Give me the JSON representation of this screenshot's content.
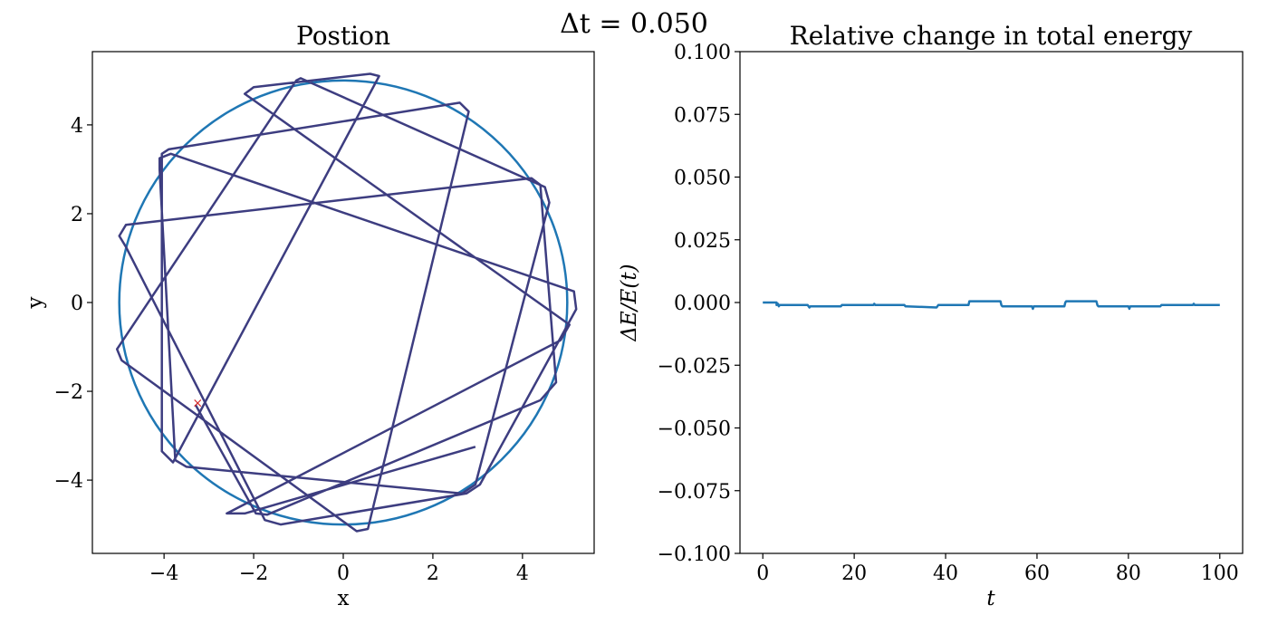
{
  "suptitle": "Δt = 0.050",
  "chart_data": [
    {
      "type": "line",
      "title": "Postion",
      "xlabel": "x",
      "ylabel": "y",
      "xlim": [
        -5.6,
        5.6
      ],
      "ylim": [
        -5.65,
        5.65
      ],
      "xticks": [
        -4,
        -2,
        0,
        2,
        4
      ],
      "xtick_labels": [
        "−4",
        "−2",
        "0",
        "2",
        "4"
      ],
      "yticks": [
        -4,
        -2,
        0,
        2,
        4
      ],
      "ytick_labels": [
        "−4",
        "−2",
        "0",
        "2",
        "4"
      ],
      "grid": false,
      "series": [
        {
          "kind": "circle",
          "center": [
            0,
            0
          ],
          "radius": 5.0,
          "color": "#1f77b4"
        },
        {
          "kind": "trajectory",
          "color": "#3d3d80",
          "points": [
            [
              -3.3,
              -2.3
            ],
            [
              -1.95,
              -4.75
            ],
            [
              -1.7,
              -4.78
            ],
            [
              4.4,
              -2.2
            ],
            [
              4.75,
              -1.8
            ],
            [
              4.4,
              2.65
            ],
            [
              4.2,
              2.8
            ],
            [
              -4.85,
              1.75
            ],
            [
              -5.0,
              1.5
            ],
            [
              -4.85,
              1.25
            ],
            [
              -1.75,
              -4.9
            ],
            [
              -1.4,
              -5.0
            ],
            [
              2.75,
              -4.3
            ],
            [
              3.05,
              -4.1
            ],
            [
              5.2,
              -0.15
            ],
            [
              5.15,
              0.25
            ],
            [
              -3.85,
              3.35
            ],
            [
              -4.1,
              3.25
            ],
            [
              -4.1,
              3.0
            ],
            [
              -3.75,
              -3.55
            ],
            [
              -3.5,
              -3.7
            ],
            [
              2.65,
              -4.3
            ],
            [
              2.95,
              -4.1
            ],
            [
              4.6,
              2.25
            ],
            [
              4.5,
              2.6
            ],
            [
              -0.95,
              5.05
            ],
            [
              -1.05,
              5.0
            ],
            [
              -5.05,
              -1.05
            ],
            [
              -4.95,
              -1.3
            ],
            [
              0.3,
              -5.15
            ],
            [
              0.55,
              -5.1
            ],
            [
              2.8,
              4.3
            ],
            [
              2.6,
              4.5
            ],
            [
              -3.9,
              3.45
            ],
            [
              -4.05,
              3.35
            ],
            [
              -4.05,
              -3.35
            ],
            [
              -3.8,
              -3.6
            ],
            [
              0.8,
              5.1
            ],
            [
              0.6,
              5.15
            ],
            [
              -2.0,
              4.85
            ],
            [
              -2.2,
              4.7
            ],
            [
              5.05,
              -0.5
            ],
            [
              4.85,
              -0.85
            ],
            [
              -2.6,
              -4.75
            ],
            [
              -2.2,
              -4.75
            ],
            [
              2.95,
              -3.25
            ]
          ]
        },
        {
          "kind": "start-marker",
          "symbol": "×",
          "point": [
            -3.25,
            -2.25
          ],
          "color": "#d62728"
        }
      ]
    },
    {
      "type": "line",
      "title": "Relative change in total energy",
      "xlabel": "t",
      "ylabel": "ΔE/E(t)",
      "xlim": [
        -5,
        105
      ],
      "ylim": [
        -0.1,
        0.1
      ],
      "xticks": [
        0,
        20,
        40,
        60,
        80,
        100
      ],
      "xtick_labels": [
        "0",
        "20",
        "40",
        "60",
        "80",
        "100"
      ],
      "yticks": [
        -0.1,
        -0.075,
        -0.05,
        -0.025,
        0.0,
        0.025,
        0.05,
        0.075,
        0.1
      ],
      "ytick_labels": [
        "−0.100",
        "−0.075",
        "−0.050",
        "−0.025",
        "0.000",
        "0.025",
        "0.050",
        "0.075",
        "0.100"
      ],
      "grid": false,
      "series": [
        {
          "color": "#1f77b4",
          "x": [
            0,
            3.0,
            3.0,
            3.3,
            3.5,
            3.7,
            9.8,
            10.2,
            10.4,
            10.6,
            16.7,
            17.1,
            17.3,
            17.5,
            24.2,
            24.4,
            24.6,
            31.0,
            31.2,
            31.4,
            38.0,
            38.2,
            38.4,
            45.0,
            45.2,
            45.4,
            52.0,
            52.2,
            52.4,
            58.9,
            59.1,
            59.3,
            66.0,
            66.2,
            66.4,
            73.0,
            73.2,
            73.4,
            80.0,
            80.2,
            80.4,
            87.0,
            87.2,
            87.4,
            94.1,
            94.3,
            94.5,
            100
          ],
          "y": [
            0.0,
            0.0,
            -0.001,
            -0.0005,
            -0.0015,
            -0.001,
            -0.001,
            -0.002,
            -0.0015,
            -0.0015,
            -0.0015,
            -0.0015,
            -0.001,
            -0.001,
            -0.001,
            -0.0005,
            -0.001,
            -0.001,
            -0.0015,
            -0.0015,
            -0.002,
            -0.0015,
            -0.001,
            -0.001,
            0.0005,
            0.0005,
            0.0005,
            -0.001,
            -0.0015,
            -0.0015,
            -0.0025,
            -0.0015,
            -0.0015,
            0.0,
            0.0005,
            0.0005,
            -0.001,
            -0.0015,
            -0.0015,
            -0.0025,
            -0.0015,
            -0.0015,
            -0.001,
            -0.001,
            -0.001,
            -0.0005,
            -0.001,
            -0.001
          ]
        }
      ]
    }
  ]
}
